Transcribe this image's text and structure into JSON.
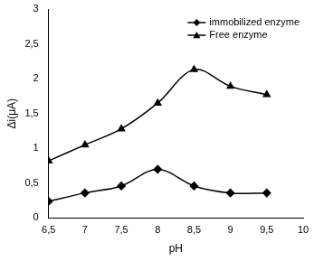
{
  "chart_data": {
    "type": "line",
    "x_label": "pH",
    "y_label": "Δi(μA)",
    "series": [
      {
        "name": "immobilized enzyme",
        "color": "#000000",
        "marker": "diamond",
        "x": [
          6.5,
          7,
          7.5,
          8,
          8.5,
          9,
          9.5
        ],
        "values": [
          0.24,
          0.36,
          0.46,
          0.7,
          0.46,
          0.36,
          0.36
        ]
      },
      {
        "name": "Free enzyme",
        "color": "#000000",
        "marker": "triangle",
        "x": [
          6.5,
          7,
          7.5,
          8,
          8.5,
          9,
          9.5
        ],
        "values": [
          0.82,
          1.05,
          1.28,
          1.65,
          2.13,
          1.89,
          1.77
        ]
      }
    ],
    "xlim": [
      6.5,
      10
    ],
    "xticks": [
      {
        "value": 6.5,
        "label": "6,5"
      },
      7,
      {
        "value": 7.5,
        "label": "7,5"
      },
      8,
      {
        "value": 8.5,
        "label": "8,5"
      },
      9,
      {
        "value": 9.5,
        "label": "9,5"
      },
      10
    ],
    "ylim": [
      0,
      3
    ],
    "yticks": [
      0,
      {
        "value": 0.5,
        "label": "0,5"
      },
      1,
      {
        "value": 1.5,
        "label": "1,5"
      },
      2,
      {
        "value": 2.5,
        "label": "2,5"
      },
      3
    ],
    "grid": false,
    "legend": "top-right"
  }
}
